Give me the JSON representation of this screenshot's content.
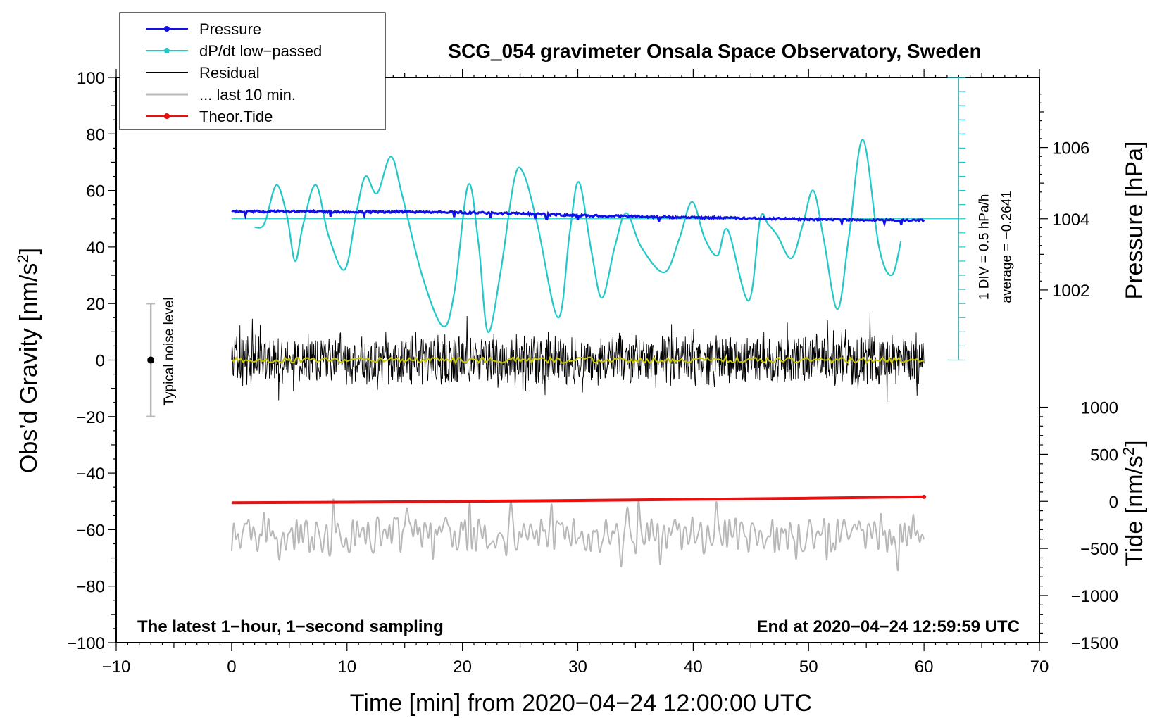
{
  "chart_data": {
    "type": "line",
    "title": "SCG_054 gravimeter Onsala Space Observatory, Sweden",
    "xlabel": "Time [min] from 2020−04−24 12:00:00 UTC",
    "ylabel": "Obs’d Gravity [nm/s²]",
    "ylabel_main": "Obs’d Gravity [nm/s",
    "ylabel_sup": "2",
    "ylabel_close": "]",
    "xlim": [
      -10,
      70
    ],
    "ylim": [
      -100,
      100
    ],
    "x_ticks": [
      "−10",
      "0",
      "10",
      "20",
      "30",
      "40",
      "50",
      "60",
      "70"
    ],
    "x_tick_values": [
      -10,
      0,
      10,
      20,
      30,
      40,
      50,
      60,
      70
    ],
    "y_ticks": [
      "100",
      "80",
      "60",
      "40",
      "20",
      "0",
      "−20",
      "−40",
      "−60",
      "−80",
      "−100"
    ],
    "y_tick_values": [
      100,
      80,
      60,
      40,
      20,
      0,
      -20,
      -40,
      -60,
      -80,
      -100
    ],
    "pressure_axis": {
      "label": "Pressure [hPa]",
      "ticks": [
        "1006",
        "1004",
        "1002"
      ],
      "tick_values": [
        1006,
        1004,
        1002
      ],
      "reference": 1004,
      "gravity_equiv_of_reference": 50,
      "gravity_per_hPa": 12.6
    },
    "tide_axis": {
      "label_main": "Tide [nm/s",
      "label_sup": "2",
      "label_close": "]",
      "ticks": [
        "1000",
        "500",
        "0",
        "−500",
        "−1000",
        "−1500"
      ],
      "tick_values": [
        1000,
        500,
        0,
        -500,
        -1000,
        -1500
      ],
      "gravity_equiv_of_zero": -50,
      "gravity_per_unit": 0.0333
    },
    "dpdt_scale": {
      "div_label": "1 DIV = 0.5 hPa/h",
      "average_label": "average = −0.2641",
      "x": 63,
      "y_from": 0,
      "y_to": 100,
      "div_step": 5
    },
    "noise_bar": {
      "label": "Typical noise level",
      "x": -7,
      "y": 0,
      "half_range": 20
    },
    "notes": {
      "left": "The latest 1−hour, 1−second sampling",
      "right": "End at 2020−04−24 12:59:59 UTC"
    },
    "legend": {
      "position": "top-left",
      "entries": [
        {
          "label": "Pressure",
          "color": "#1010e8",
          "marker": true
        },
        {
          "label": "dP/dt low−passed",
          "color": "#22c8c8",
          "marker": true
        },
        {
          "label": "Residual",
          "color": "#000000",
          "marker": false
        },
        {
          "label": "... last 10 min.",
          "color": "#b8b8b8",
          "marker": false
        },
        {
          "label": "Theor.Tide",
          "color": "#e81010",
          "marker": true
        }
      ]
    },
    "series": [
      {
        "name": "Pressure",
        "color": "#1010e8",
        "x": [
          0,
          5,
          10,
          15,
          20,
          25,
          30,
          35,
          40,
          45,
          50,
          55,
          60
        ],
        "values": [
          52.5,
          52.6,
          52.4,
          52.5,
          52.2,
          51.8,
          51.2,
          50.8,
          50.4,
          50.2,
          49.8,
          49.6,
          49.4
        ]
      },
      {
        "name": "dP/dt low−passed",
        "color": "#22c8c8",
        "x": [
          2,
          2.6,
          3,
          3.9,
          4.8,
          5.5,
          6.2,
          7.3,
          8.4,
          9.8,
          10.8,
          11.6,
          12.6,
          13.8,
          14.8,
          16.5,
          18.3,
          19.3,
          20.5,
          21.4,
          22.2,
          23.3,
          24.5,
          25.3,
          26.5,
          28.3,
          29.3,
          30.1,
          31.2,
          32.1,
          33.2,
          34.2,
          35.5,
          37.5,
          38.8,
          39.9,
          41,
          42.1,
          43,
          44.8,
          45.8,
          46.5,
          47.3,
          48.5,
          49.5,
          50.4,
          51.3,
          52.5,
          53.5,
          54.7,
          56.1,
          57.2,
          58
        ],
        "values": [
          47,
          47,
          50,
          62,
          51,
          35,
          48,
          62,
          44,
          32,
          52,
          65,
          59,
          72,
          58,
          30,
          12,
          24,
          62,
          41,
          10,
          31,
          64,
          66,
          48,
          15,
          45,
          63,
          38,
          22,
          40,
          52,
          40,
          31,
          43,
          56,
          43,
          37,
          46,
          21,
          50,
          48,
          44,
          36,
          48,
          60,
          43,
          18,
          44,
          78,
          40,
          30,
          42
        ]
      },
      {
        "name": "Residual",
        "color": "#000000",
        "x_range": [
          0,
          60
        ],
        "amplitude": 10
      },
      {
        "name": "... last 10 min.",
        "color": "#b8b8b8",
        "x_range": [
          0,
          60
        ],
        "center": -62,
        "amplitude": 6
      },
      {
        "name": "Theor.Tide",
        "color": "#e81010",
        "x": [
          0,
          10,
          20,
          30,
          40,
          50,
          60
        ],
        "values": [
          -50.5,
          -50.3,
          -50.0,
          -49.7,
          -49.3,
          -48.9,
          -48.4
        ]
      },
      {
        "name": "Residual smoothed",
        "color": "#c8c800",
        "x_range": [
          0,
          60
        ],
        "amplitude": 1
      }
    ]
  }
}
